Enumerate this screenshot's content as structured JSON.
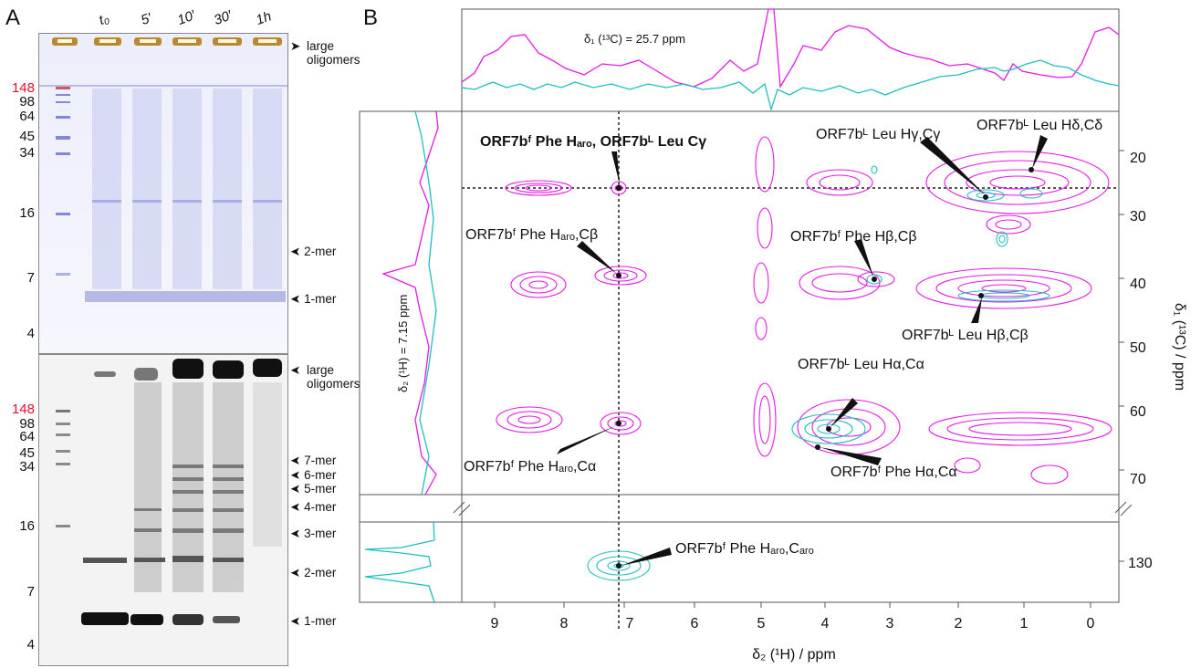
{
  "panel_a": {
    "letter": "A",
    "lanes": [
      "t₀",
      "5′",
      "10′",
      "30′",
      "1h"
    ],
    "mw_top": [
      {
        "v": "148",
        "red": true
      },
      {
        "v": "98"
      },
      {
        "v": "64"
      },
      {
        "v": "45"
      },
      {
        "v": "34"
      },
      {
        "v": "16"
      },
      {
        "v": "7"
      },
      {
        "v": "4"
      }
    ],
    "mw_bottom": [
      {
        "v": "148",
        "red": true
      },
      {
        "v": "98"
      },
      {
        "v": "64"
      },
      {
        "v": "45"
      },
      {
        "v": "34"
      },
      {
        "v": "16"
      },
      {
        "v": "7"
      },
      {
        "v": "4"
      }
    ],
    "labels_top": [
      "large\noligomers",
      "2-mer",
      "1-mer"
    ],
    "labels_bottom": [
      "large\noligomers",
      "7-mer",
      "6-mer",
      "5-mer",
      "4-mer",
      "3-mer",
      "2-mer",
      "1-mer"
    ]
  },
  "panel_b": {
    "letter": "B",
    "top_projection_label": "δ₁ (¹³C) = 25.7 ppm",
    "left_projection_label": "δ₂ (¹H) = 7.15 ppm",
    "x_axis_label": "δ₂ (¹H) / ppm",
    "y_axis_label": "δ₁ (¹³C) / ppm",
    "x_ticks": [
      "9",
      "8",
      "7",
      "6",
      "5",
      "4",
      "3",
      "2",
      "1",
      "0"
    ],
    "y_ticks_upper": [
      "20",
      "30",
      "40",
      "50",
      "60",
      "70"
    ],
    "y_ticks_lower": [
      "130"
    ],
    "annotations": {
      "a1": "ORF7bᶠ Phe Hₐᵣₒ, ORF7bᴸ Leu Cγ",
      "a2": "ORF7bᴸ Leu Hγ,Cγ",
      "a3": "ORF7bᴸ Leu Hδ,Cδ",
      "a4": "ORF7bᶠ Phe Hₐᵣₒ,Cβ",
      "a5": "ORF7bᶠ Phe Hβ,Cβ",
      "a6": "ORF7bᴸ Leu Hβ,Cβ",
      "a7": "ORF7bᴸ Leu Hα,Cα",
      "a8": "ORF7bᶠ Phe Hₐᵣₒ,Cα",
      "a9": "ORF7bᶠ Phe Hα,Cα",
      "a10": "ORF7bᶠ Phe Hₐᵣₒ,Cₐᵣₒ"
    },
    "colors": {
      "magenta": "#e619e6",
      "cyan": "#1fbfbf"
    }
  }
}
